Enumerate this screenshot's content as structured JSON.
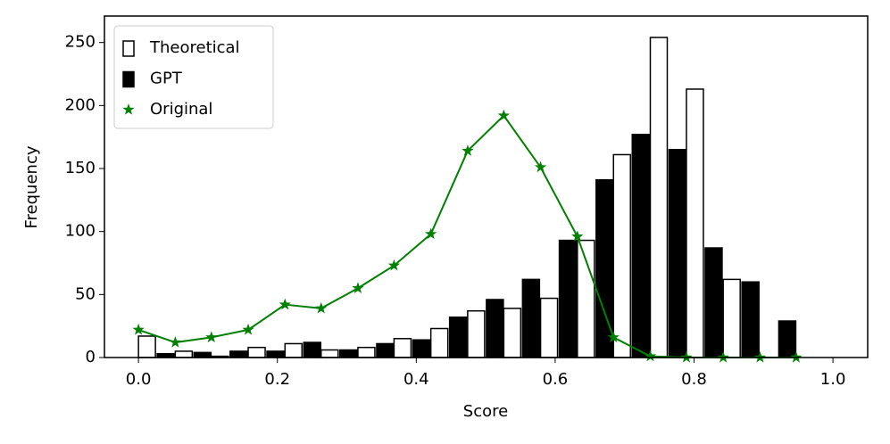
{
  "chart_data": {
    "type": "bar",
    "xlabel": "Score",
    "ylabel": "Frequency",
    "x": [
      0,
      0.053,
      0.105,
      0.158,
      0.211,
      0.263,
      0.316,
      0.368,
      0.421,
      0.474,
      0.526,
      0.579,
      0.632,
      0.684,
      0.737,
      0.789,
      0.842,
      0.895,
      0.947
    ],
    "series": [
      {
        "name": "Theoretical",
        "type": "bar",
        "color": "#ffffff",
        "edgecolor": "#000000",
        "values": [
          17,
          5,
          1,
          8,
          11,
          6,
          8,
          15,
          23,
          37,
          39,
          47,
          93,
          161,
          254,
          213,
          62,
          0,
          0
        ]
      },
      {
        "name": "GPT",
        "type": "bar",
        "color": "#000000",
        "edgecolor": "#000000",
        "values": [
          3,
          4,
          5,
          5,
          12,
          6,
          11,
          14,
          32,
          46,
          62,
          93,
          141,
          177,
          165,
          87,
          60,
          29,
          0
        ]
      },
      {
        "name": "Original",
        "type": "line",
        "marker": "star",
        "color": "#008000",
        "values": [
          22,
          12,
          16,
          22,
          42,
          39,
          55,
          73,
          98,
          164,
          192,
          151,
          96,
          16,
          1,
          0,
          0,
          0,
          0
        ]
      }
    ],
    "xlim": [
      -0.049,
      1.05
    ],
    "ylim": [
      0,
      271
    ],
    "xticks": [
      {
        "value": 0,
        "label": "0.0"
      },
      0.2,
      0.4,
      0.6,
      0.8,
      {
        "value": 1,
        "label": "1.0"
      }
    ],
    "yticks": [
      0,
      50,
      100,
      150,
      200,
      250
    ],
    "legend": "upper left"
  }
}
